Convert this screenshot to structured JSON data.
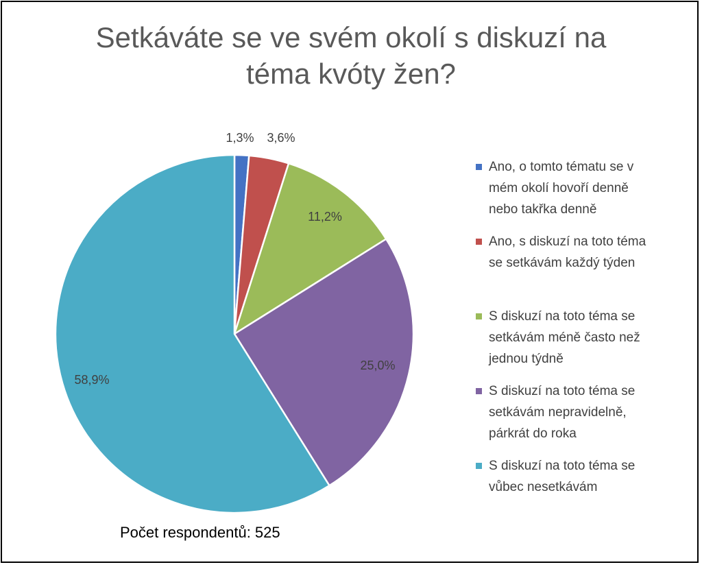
{
  "title_lines": [
    "Setkáváte se ve svém okolí s diskuzí na",
    "téma kvóty žen?"
  ],
  "footnote": "Počet respondentů: 525",
  "chart_data": {
    "type": "pie",
    "title": "Setkáváte se ve svém okolí s diskuzí na téma kvóty žen?",
    "legend_position": "right",
    "slices": [
      {
        "label": "Ano, o tomto tématu se v mém okolí hovoří denně nebo takřka denně",
        "label_lines": [
          "Ano, o tomto tématu se v",
          "mém okolí hovoří denně",
          "nebo takřka denně"
        ],
        "value": 1.3,
        "value_label": "1,3%",
        "color": "#4472C4"
      },
      {
        "label": "Ano, s diskuzí na toto téma se setkávám každý týden",
        "label_lines": [
          "Ano, s diskuzí na toto téma",
          "se setkávám každý týden"
        ],
        "value": 3.6,
        "value_label": "3,6%",
        "color": "#C0504D"
      },
      {
        "label": "S diskuzí na toto téma se setkávám méně často než jednou týdně",
        "label_lines": [
          "S diskuzí na toto téma se",
          "setkávám méně často než",
          "jednou týdně"
        ],
        "value": 11.2,
        "value_label": "11,2%",
        "color": "#9BBB59"
      },
      {
        "label": "S diskuzí na toto téma se setkávám nepravidelně, párkrát do roka",
        "label_lines": [
          "S diskuzí na toto téma se",
          "setkávám nepravidelně,",
          "párkrát do roka"
        ],
        "value": 25.0,
        "value_label": "25,0%",
        "color": "#8064A2"
      },
      {
        "label": "S diskuzí na toto téma se vůbec nesetkávám",
        "label_lines": [
          "S diskuzí na toto téma se",
          "vůbec nesetkávám"
        ],
        "value": 58.9,
        "value_label": "58,9%",
        "color": "#4BACC6"
      }
    ]
  }
}
